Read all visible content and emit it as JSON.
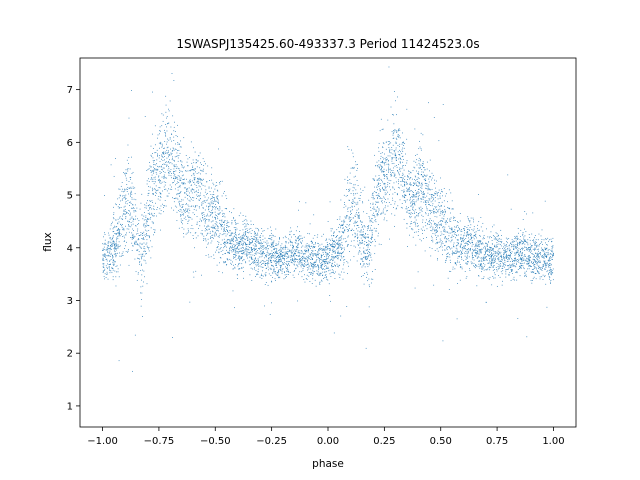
{
  "chart_data": {
    "type": "scatter",
    "title": "1SWASPJ135425.60-493337.3 Period 11424523.0s",
    "xlabel": "phase",
    "ylabel": "flux",
    "xlim": [
      -1.1,
      1.1
    ],
    "ylim": [
      0.6,
      7.6
    ],
    "xticks": [
      -1.0,
      -0.75,
      -0.5,
      -0.25,
      0.0,
      0.25,
      0.5,
      0.75,
      1.0
    ],
    "xtick_labels": [
      "−1.00",
      "−0.75",
      "−0.50",
      "−0.25",
      "0.00",
      "0.25",
      "0.50",
      "0.75",
      "1.00"
    ],
    "yticks": [
      1,
      2,
      3,
      4,
      5,
      6,
      7
    ],
    "ytick_labels": [
      "1",
      "2",
      "3",
      "4",
      "5",
      "6",
      "7"
    ],
    "grid": false,
    "marker_color": "#1f77b4",
    "series": [
      {
        "x": [
          -1.0,
          -0.97,
          -0.94,
          -0.91,
          -0.88,
          -0.85,
          -0.82,
          -0.79,
          -0.76,
          -0.73,
          -0.7,
          -0.67,
          -0.64,
          -0.61,
          -0.58,
          -0.55,
          -0.52,
          -0.49,
          -0.46,
          -0.43,
          -0.4,
          -0.37,
          -0.34,
          -0.31,
          -0.28,
          -0.25,
          -0.22,
          -0.19,
          -0.16,
          -0.13,
          -0.1,
          -0.07,
          -0.04,
          -0.01,
          0.0,
          0.03,
          0.06,
          0.09,
          0.12,
          0.15,
          0.18,
          0.21,
          0.24,
          0.27,
          0.3,
          0.33,
          0.36,
          0.39,
          0.42,
          0.45,
          0.48,
          0.51,
          0.54,
          0.57,
          0.6,
          0.63,
          0.66,
          0.69,
          0.72,
          0.75,
          0.78,
          0.81,
          0.84,
          0.87,
          0.9,
          0.93,
          0.96,
          0.99,
          1.0
        ],
        "y": [
          3.8,
          3.9,
          4.1,
          4.6,
          4.9,
          4.2,
          3.9,
          4.9,
          5.3,
          5.5,
          5.8,
          5.4,
          4.9,
          5.0,
          5.1,
          4.8,
          4.6,
          4.5,
          4.3,
          4.1,
          4.0,
          4.1,
          4.0,
          3.9,
          3.8,
          3.9,
          3.8,
          3.8,
          3.9,
          3.9,
          3.8,
          3.8,
          3.8,
          3.8,
          3.8,
          3.9,
          4.1,
          4.6,
          4.9,
          4.2,
          3.9,
          4.9,
          5.3,
          5.5,
          5.8,
          5.4,
          4.9,
          5.0,
          5.1,
          4.8,
          4.6,
          4.5,
          4.3,
          4.1,
          4.0,
          4.1,
          4.0,
          3.9,
          3.8,
          3.9,
          3.8,
          3.8,
          3.9,
          3.9,
          3.8,
          3.8,
          3.8,
          3.8,
          3.8
        ],
        "spread": [
          0.25,
          0.3,
          0.4,
          0.55,
          0.6,
          0.5,
          0.5,
          0.6,
          0.55,
          0.55,
          0.6,
          0.5,
          0.5,
          0.5,
          0.5,
          0.5,
          0.45,
          0.45,
          0.4,
          0.35,
          0.3,
          0.3,
          0.3,
          0.3,
          0.25,
          0.3,
          0.25,
          0.25,
          0.25,
          0.25,
          0.25,
          0.25,
          0.25,
          0.25,
          0.25,
          0.3,
          0.4,
          0.55,
          0.6,
          0.5,
          0.5,
          0.6,
          0.55,
          0.55,
          0.6,
          0.5,
          0.5,
          0.5,
          0.5,
          0.5,
          0.45,
          0.45,
          0.4,
          0.35,
          0.3,
          0.3,
          0.3,
          0.3,
          0.25,
          0.3,
          0.25,
          0.25,
          0.25,
          0.25,
          0.25,
          0.25,
          0.25,
          0.25,
          0.25
        ]
      }
    ]
  }
}
